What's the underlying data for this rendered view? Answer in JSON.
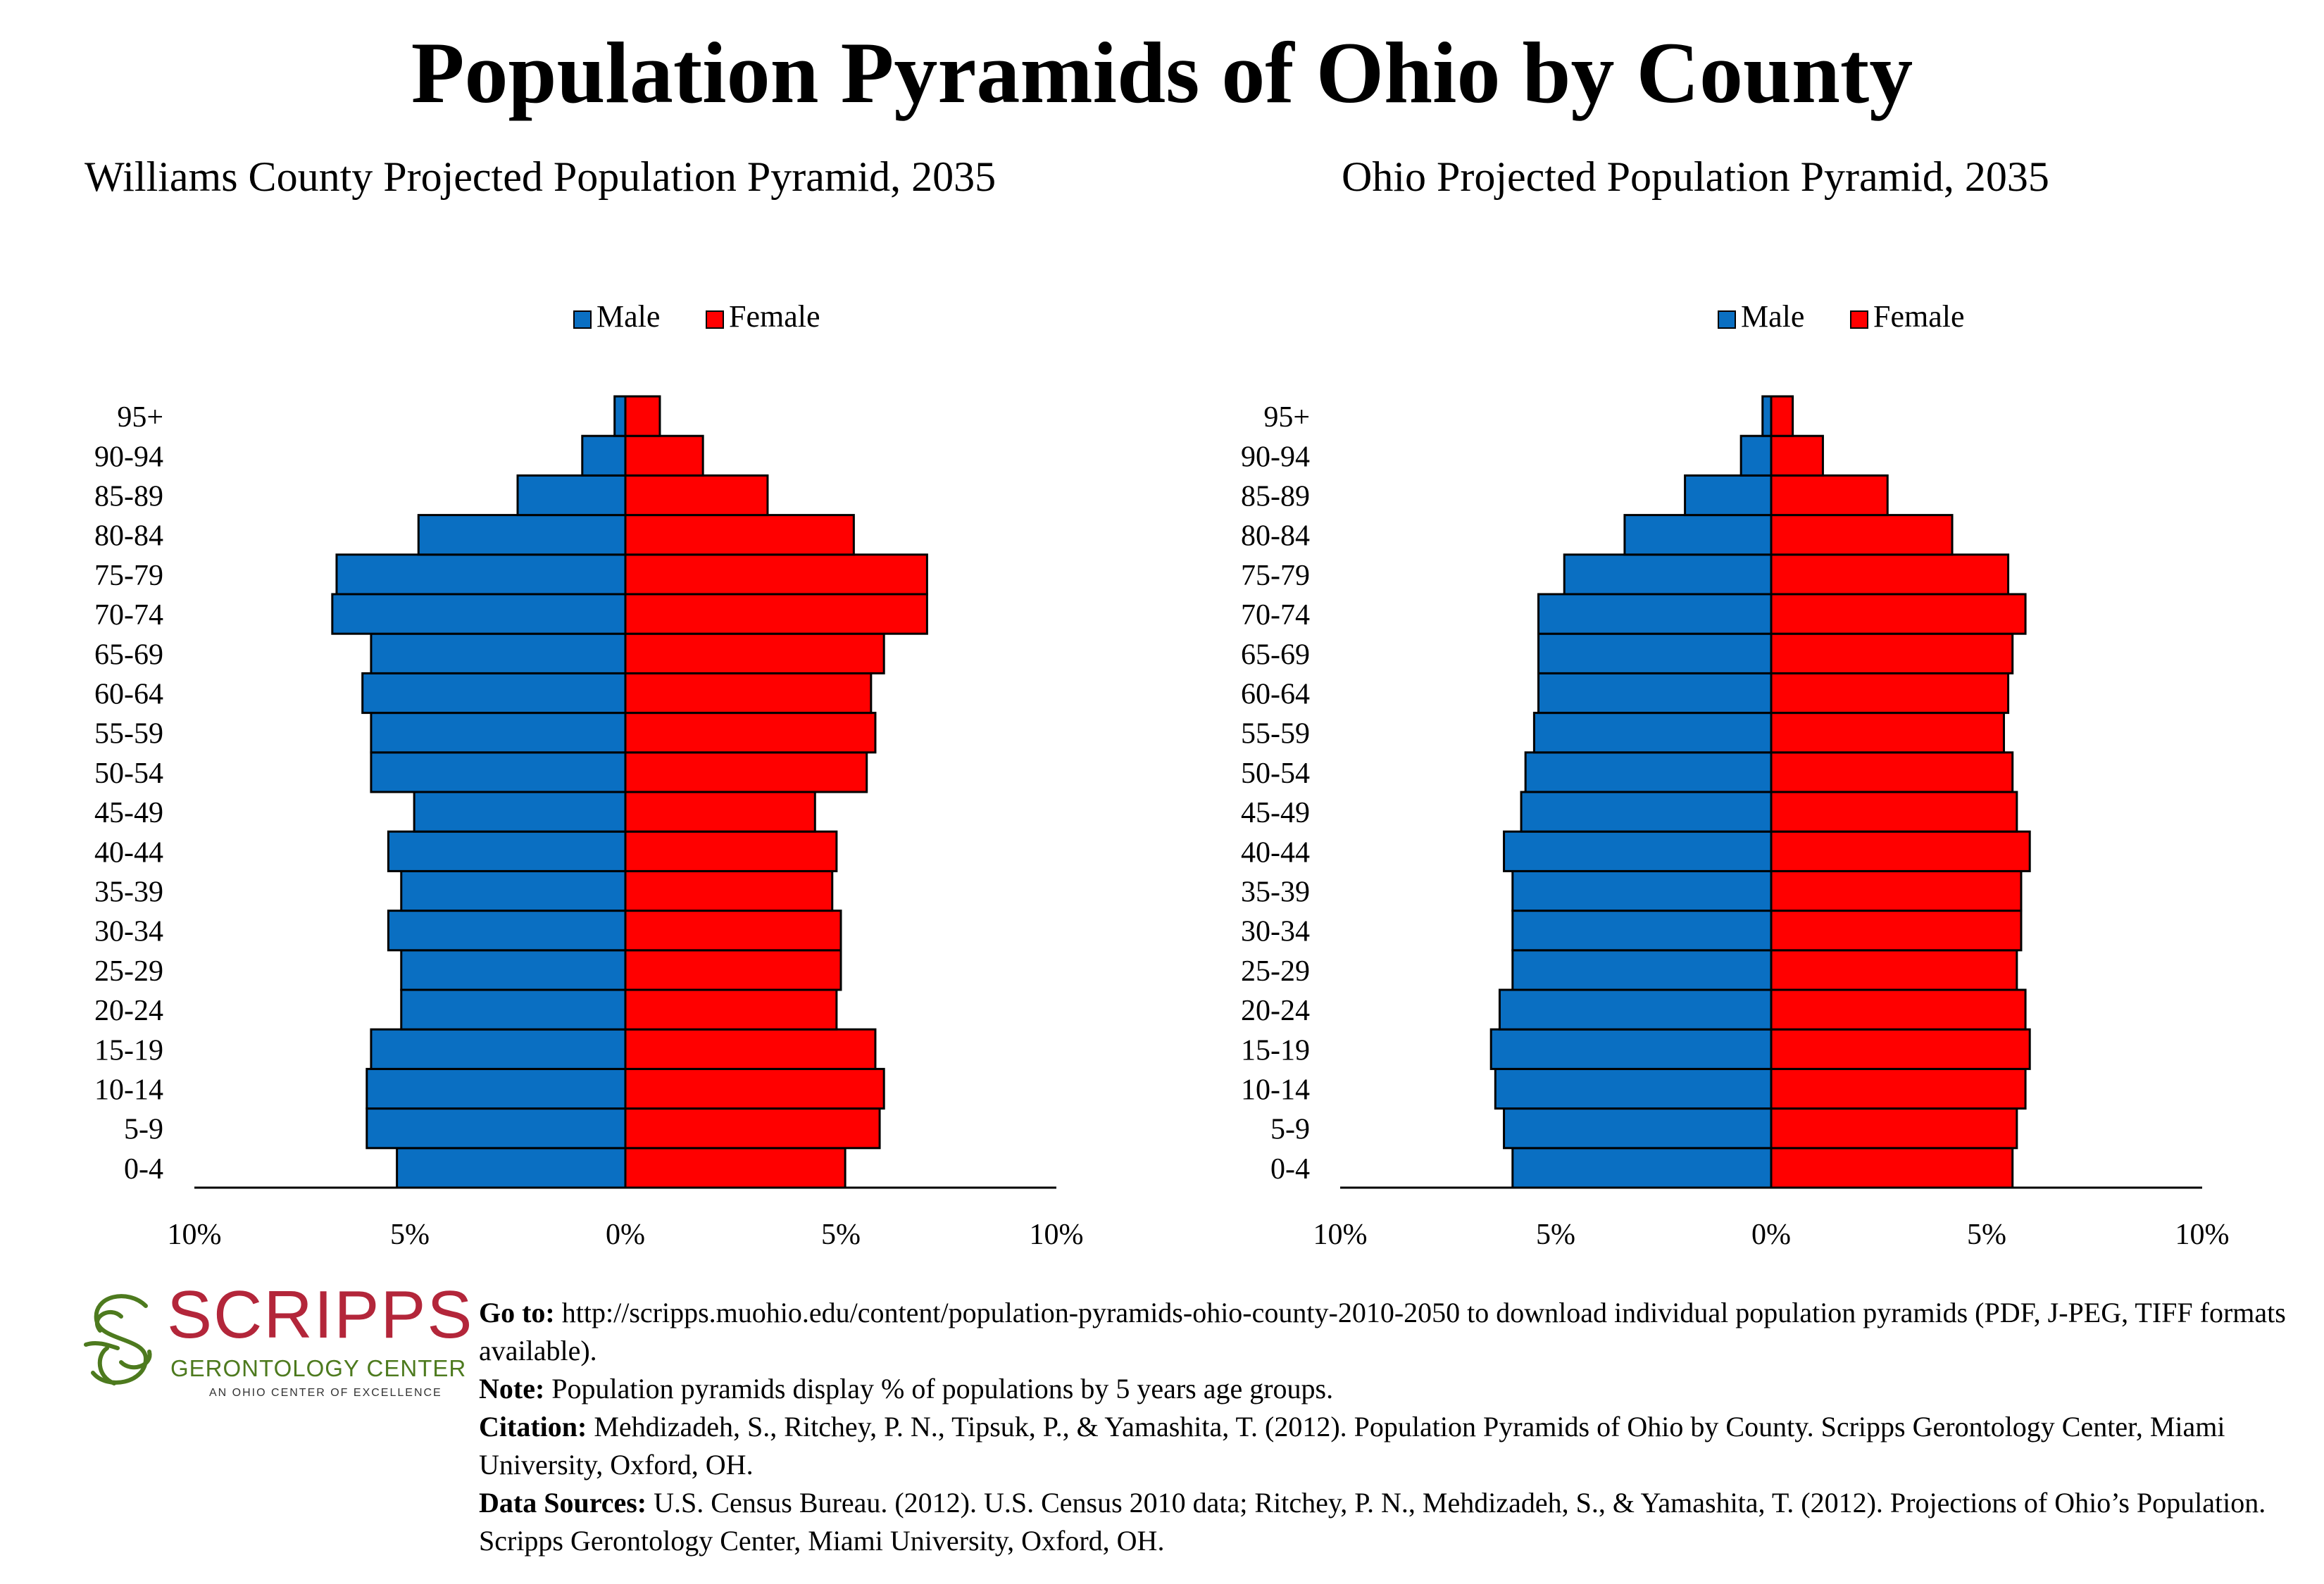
{
  "title": "Population Pyramids of Ohio by County",
  "colors": {
    "male": "#0a6fc2",
    "female": "#ff0000"
  },
  "chart_data": [
    {
      "type": "bar",
      "title": "Williams County Projected Population Pyramid, 2035",
      "categories": [
        "0-4",
        "5-9",
        "10-14",
        "15-19",
        "20-24",
        "25-29",
        "30-34",
        "35-39",
        "40-44",
        "45-49",
        "50-54",
        "55-59",
        "60-64",
        "65-69",
        "70-74",
        "75-79",
        "80-84",
        "85-89",
        "90-94",
        "95+"
      ],
      "series": [
        {
          "name": "Male",
          "values": [
            5.3,
            6.0,
            6.0,
            5.9,
            5.2,
            5.2,
            5.5,
            5.2,
            5.5,
            4.9,
            5.9,
            5.9,
            6.1,
            5.9,
            6.8,
            6.7,
            4.8,
            2.5,
            1.0,
            0.25
          ]
        },
        {
          "name": "Female",
          "values": [
            5.1,
            5.9,
            6.0,
            5.8,
            4.9,
            5.0,
            5.0,
            4.8,
            4.9,
            4.4,
            5.6,
            5.8,
            5.7,
            6.0,
            7.0,
            7.0,
            5.3,
            3.3,
            1.8,
            0.8
          ]
        }
      ],
      "xlim": [
        -10,
        10
      ],
      "xticks": [
        "10%",
        "5%",
        "0%",
        "5%",
        "10%"
      ],
      "legend": "top-center"
    },
    {
      "type": "bar",
      "title": "Ohio Projected Population Pyramid, 2035",
      "categories": [
        "0-4",
        "5-9",
        "10-14",
        "15-19",
        "20-24",
        "25-29",
        "30-34",
        "35-39",
        "40-44",
        "45-49",
        "50-54",
        "55-59",
        "60-64",
        "65-69",
        "70-74",
        "75-79",
        "80-84",
        "85-89",
        "90-94",
        "95+"
      ],
      "series": [
        {
          "name": "Male",
          "values": [
            6.0,
            6.2,
            6.4,
            6.5,
            6.3,
            6.0,
            6.0,
            6.0,
            6.2,
            5.8,
            5.7,
            5.5,
            5.4,
            5.4,
            5.4,
            4.8,
            3.4,
            2.0,
            0.7,
            0.2
          ]
        },
        {
          "name": "Female",
          "values": [
            5.6,
            5.7,
            5.9,
            6.0,
            5.9,
            5.7,
            5.8,
            5.8,
            6.0,
            5.7,
            5.6,
            5.4,
            5.5,
            5.6,
            5.9,
            5.5,
            4.2,
            2.7,
            1.2,
            0.5
          ]
        }
      ],
      "xlim": [
        -10,
        10
      ],
      "xticks": [
        "10%",
        "5%",
        "0%",
        "5%",
        "10%"
      ],
      "legend": "top-center"
    }
  ],
  "logo": {
    "wordmark": "SCRIPPS",
    "subtitle": "GERONTOLOGY CENTER",
    "tagline": "AN OHIO CENTER OF EXCELLENCE"
  },
  "footnotes": [
    {
      "label": "Go to:",
      "text": " http://scripps.muohio.edu/content/population-pyramids-ohio-county-2010-2050 to download individual population pyramids (PDF, J-PEG, TIFF formats available)."
    },
    {
      "label": "Note:",
      "text": " Population pyramids display % of populations by 5 years age groups."
    },
    {
      "label": "Citation:",
      "text": " Mehdizadeh, S., Ritchey, P. N., Tipsuk, P., & Yamashita, T. (2012). Population Pyramids of Ohio by County. Scripps Gerontology Center, Miami University, Oxford, OH."
    },
    {
      "label": "Data Sources:",
      "text": " U.S. Census Bureau. (2012). U.S. Census 2010 data; Ritchey, P. N., Mehdizadeh, S., & Yamashita, T. (2012). Projections of Ohio’s Population. Scripps Gerontology Center, Miami University, Oxford, OH."
    }
  ]
}
